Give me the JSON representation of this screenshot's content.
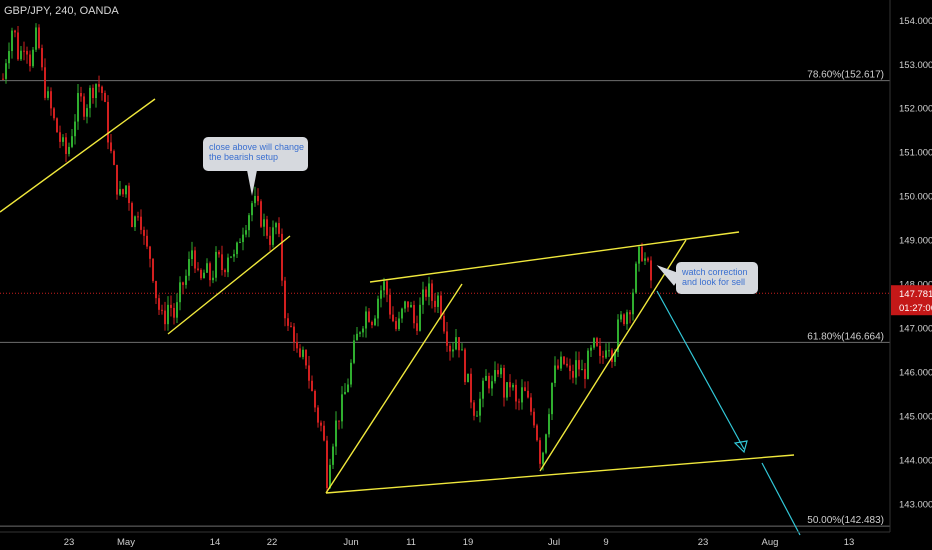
{
  "header": {
    "symbol": "GBP/JPY, 240, OANDA"
  },
  "colors": {
    "background": "#000000",
    "up_candle": "#2fae2f",
    "down_candle": "#d21f1f",
    "trendline": "#f0e83c",
    "projection": "#32c8d8",
    "current_price_line": "#c81e1e",
    "fib_line": "#6e6e6e"
  },
  "annotations": [
    {
      "lines": [
        "close above will change",
        "the bearish setup"
      ]
    },
    {
      "lines": [
        "watch correction",
        "and look for sell"
      ]
    }
  ],
  "chart_data": {
    "type": "candlestick",
    "y_axis": {
      "range": [
        142.35,
        154.45
      ],
      "tick_labels": [
        "154.000",
        "153.000",
        "152.000",
        "151.000",
        "150.000",
        "149.000",
        "148.000",
        "147.000",
        "146.000",
        "145.000",
        "144.000",
        "143.000"
      ]
    },
    "x_axis": {
      "tick_labels": [
        "23",
        "May",
        "14",
        "22",
        "Jun",
        "11",
        "19",
        "Jul",
        "9",
        "23",
        "Aug",
        "13"
      ]
    },
    "current_price": {
      "value": "147.781",
      "countdown": "01:27:06"
    },
    "fib_levels": [
      {
        "label": "78.60%(152.617)",
        "value": 152.617
      },
      {
        "label": "61.80%(146.664)",
        "value": 146.664
      },
      {
        "label": "50.00%(142.483)",
        "value": 142.483
      }
    ],
    "price_path": [
      [
        1,
        152.5
      ],
      [
        6,
        153.3
      ],
      [
        12,
        153.9
      ],
      [
        18,
        153.1
      ],
      [
        24,
        153.6
      ],
      [
        30,
        153.0
      ],
      [
        36,
        153.7
      ],
      [
        42,
        152.6
      ],
      [
        48,
        152.1
      ],
      [
        54,
        151.6
      ],
      [
        60,
        151.2
      ],
      [
        66,
        150.9
      ],
      [
        72,
        151.6
      ],
      [
        78,
        152.2
      ],
      [
        84,
        152.0
      ],
      [
        90,
        152.4
      ],
      [
        96,
        152.6
      ],
      [
        102,
        152.3
      ],
      [
        108,
        151.2
      ],
      [
        114,
        150.4
      ],
      [
        120,
        149.9
      ],
      [
        126,
        150.3
      ],
      [
        132,
        149.3
      ],
      [
        138,
        149.8
      ],
      [
        144,
        148.8
      ],
      [
        150,
        148.6
      ],
      [
        156,
        147.6
      ],
      [
        162,
        147.1
      ],
      [
        168,
        147.6
      ],
      [
        174,
        147.2
      ],
      [
        180,
        147.9
      ],
      [
        186,
        148.2
      ],
      [
        192,
        148.9
      ],
      [
        198,
        147.9
      ],
      [
        204,
        148.3
      ],
      [
        210,
        148.1
      ],
      [
        216,
        148.6
      ],
      [
        222,
        148.3
      ],
      [
        228,
        148.8
      ],
      [
        234,
        148.5
      ],
      [
        240,
        149.2
      ],
      [
        246,
        149.5
      ],
      [
        252,
        149.9
      ],
      [
        258,
        149.6
      ],
      [
        264,
        149.3
      ],
      [
        270,
        149.0
      ],
      [
        276,
        149.4
      ],
      [
        282,
        147.9
      ],
      [
        286,
        146.9
      ],
      [
        292,
        147.0
      ],
      [
        298,
        146.1
      ],
      [
        304,
        146.4
      ],
      [
        310,
        145.6
      ],
      [
        316,
        145.0
      ],
      [
        322,
        144.6
      ],
      [
        326,
        143.6
      ],
      [
        330,
        144.3
      ],
      [
        336,
        144.9
      ],
      [
        342,
        145.3
      ],
      [
        348,
        145.9
      ],
      [
        354,
        146.6
      ],
      [
        360,
        147.1
      ],
      [
        366,
        147.4
      ],
      [
        372,
        147.2
      ],
      [
        378,
        147.8
      ],
      [
        384,
        148.0
      ],
      [
        390,
        147.3
      ],
      [
        396,
        146.9
      ],
      [
        402,
        147.4
      ],
      [
        408,
        147.6
      ],
      [
        414,
        147.0
      ],
      [
        420,
        147.5
      ],
      [
        426,
        147.9
      ],
      [
        432,
        147.6
      ],
      [
        438,
        147.7
      ],
      [
        444,
        147.0
      ],
      [
        450,
        146.5
      ],
      [
        456,
        146.9
      ],
      [
        462,
        146.2
      ],
      [
        468,
        145.6
      ],
      [
        474,
        145.1
      ],
      [
        480,
        145.4
      ],
      [
        486,
        145.9
      ],
      [
        492,
        145.6
      ],
      [
        498,
        146.2
      ],
      [
        504,
        145.4
      ],
      [
        510,
        145.8
      ],
      [
        516,
        145.1
      ],
      [
        522,
        145.6
      ],
      [
        528,
        145.2
      ],
      [
        534,
        144.9
      ],
      [
        540,
        143.9
      ],
      [
        546,
        144.9
      ],
      [
        552,
        145.9
      ],
      [
        558,
        146.1
      ],
      [
        564,
        146.2
      ],
      [
        570,
        145.8
      ],
      [
        576,
        146.2
      ],
      [
        582,
        145.9
      ],
      [
        588,
        146.3
      ],
      [
        594,
        146.6
      ],
      [
        600,
        146.1
      ],
      [
        606,
        146.8
      ],
      [
        612,
        146.4
      ],
      [
        618,
        147.1
      ],
      [
        624,
        147.3
      ],
      [
        630,
        147.6
      ],
      [
        636,
        148.4
      ],
      [
        640,
        148.8
      ],
      [
        646,
        148.4
      ],
      [
        652,
        147.9
      ]
    ]
  }
}
